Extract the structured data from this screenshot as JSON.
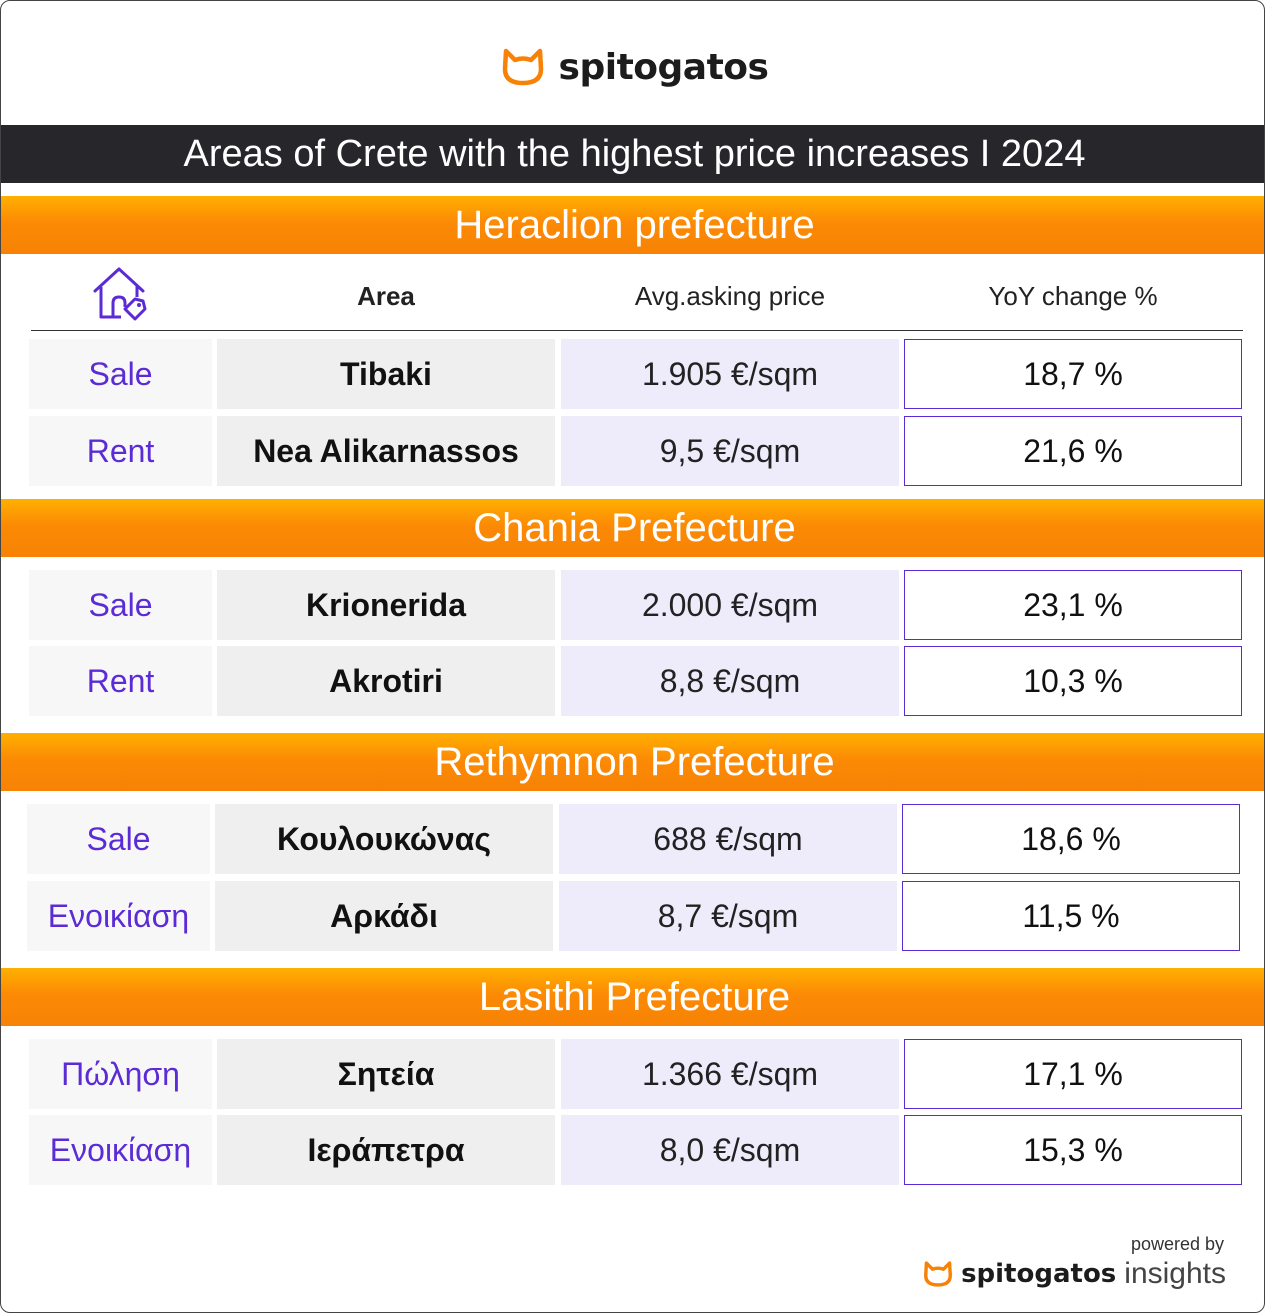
{
  "brand": {
    "name": "spitogatos",
    "accent": "#f78205",
    "purple": "#5b2bd6"
  },
  "title": "Areas of Crete with the highest price increases I 2024",
  "columns": {
    "icon": "house-tag-icon",
    "area": "Area",
    "price": "Avg.asking price",
    "yoy": "YoY change %"
  },
  "prefectures": [
    {
      "name": "Heraclion prefecture",
      "rows": [
        {
          "type": "Sale",
          "area": "Tibaki",
          "price": "1.905 €/sqm",
          "yoy": "18,7 %"
        },
        {
          "type": "Rent",
          "area": "Nea Alikarnassos",
          "price": "9,5 €/sqm",
          "yoy": "21,6 %"
        }
      ]
    },
    {
      "name": "Chania Prefecture",
      "rows": [
        {
          "type": "Sale",
          "area": "Krionerida",
          "price": "2.000 €/sqm",
          "yoy": "23,1 %"
        },
        {
          "type": "Rent",
          "area": "Akrotiri",
          "price": "8,8 €/sqm",
          "yoy": "10,3 %"
        }
      ]
    },
    {
      "name": "Rethymnon Prefecture",
      "rows": [
        {
          "type": "Sale",
          "area": "Κουλουκώνας",
          "price": "688 €/sqm",
          "yoy": "18,6 %"
        },
        {
          "type": "Ενοικίαση",
          "area": "Αρκάδι",
          "price": "8,7 €/sqm",
          "yoy": "11,5 %"
        }
      ]
    },
    {
      "name": "Lasithi Prefecture",
      "rows": [
        {
          "type": "Πώληση",
          "area": "Σητεία",
          "price": "1.366 €/sqm",
          "yoy": "17,1 %"
        },
        {
          "type": "Ενοικίαση",
          "area": "Ιεράπετρα",
          "price": "8,0 €/sqm",
          "yoy": "15,3 %"
        }
      ]
    }
  ],
  "footer": {
    "powered_by": "powered by",
    "brand": "spitogatos",
    "product": "insights"
  }
}
